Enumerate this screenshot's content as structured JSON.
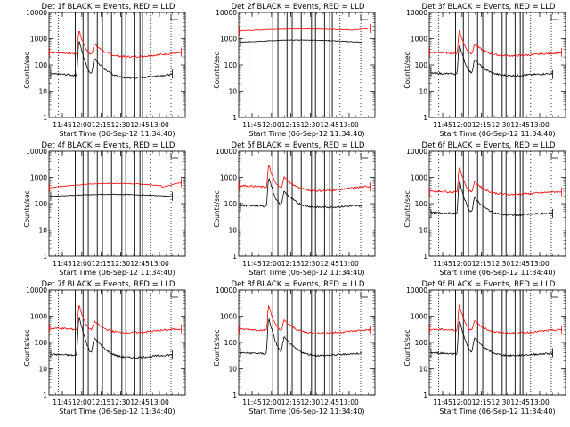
{
  "chart_data": [
    {
      "type": "line",
      "title": "Det 1f BLACK = Events, RED = LLD",
      "xlabel": "Start Time (06-Sep-12 11:34:40)",
      "ylabel": "Counts/sec",
      "yscale": "log",
      "ylim": [
        1,
        10000
      ],
      "yticks": [
        "1",
        "10",
        "100",
        "1000",
        "10000"
      ],
      "xlim": [
        "11:34:40",
        "13:20"
      ],
      "xticks": [
        "11:45",
        "12:00",
        "12:15",
        "12:30",
        "12:45",
        "13:00"
      ],
      "grid": false,
      "legend": "none",
      "profile": "flare",
      "series": [
        {
          "color": "#ff0000",
          "start": "11:35",
          "end": "13:17",
          "baseline": [
            200,
            300
          ],
          "peaks": [
            {
              "at": "11:58",
              "value": 2000
            },
            {
              "at": "12:10",
              "value": 580
            }
          ]
        },
        {
          "color": "#000000",
          "start": "11:36",
          "end": "13:10",
          "baseline": [
            30,
            45
          ],
          "peaks": [
            {
              "at": "11:58",
              "value": 800
            },
            {
              "at": "12:10",
              "value": 170
            }
          ]
        }
      ]
    },
    {
      "type": "line",
      "title": "Det 2f BLACK = Events, RED = LLD",
      "xlabel": "Start Time (06-Sep-12 11:34:40)",
      "ylabel": "Counts/sec",
      "yscale": "log",
      "ylim": [
        1,
        10000
      ],
      "yticks": [
        "1",
        "10",
        "100",
        "1000",
        "10000"
      ],
      "xlim": [
        "11:34:40",
        "13:20"
      ],
      "xticks": [
        "11:45",
        "12:00",
        "12:15",
        "12:30",
        "12:45",
        "13:00"
      ],
      "grid": false,
      "legend": "none",
      "profile": "flat",
      "series": [
        {
          "color": "#ff0000",
          "start": "11:35",
          "end": "13:17",
          "baseline": [
            2000,
            2400
          ]
        },
        {
          "color": "#000000",
          "start": "11:36",
          "end": "13:10",
          "baseline": [
            720,
            900
          ]
        }
      ]
    },
    {
      "type": "line",
      "title": "Det 3f BLACK = Events, RED = LLD",
      "xlabel": "Start Time (06-Sep-12 11:34:40)",
      "ylabel": "Counts/sec",
      "yscale": "log",
      "ylim": [
        1,
        10000
      ],
      "yticks": [
        "1",
        "10",
        "100",
        "1000",
        "10000"
      ],
      "xlim": [
        "11:34:40",
        "13:20"
      ],
      "xticks": [
        "11:45",
        "12:00",
        "12:15",
        "12:30",
        "12:45",
        "13:00"
      ],
      "grid": false,
      "legend": "none",
      "profile": "flare",
      "series": [
        {
          "color": "#ff0000",
          "start": "11:35",
          "end": "13:17",
          "baseline": [
            220,
            300
          ],
          "peaks": [
            {
              "at": "11:58",
              "value": 2000
            },
            {
              "at": "12:10",
              "value": 580
            }
          ]
        },
        {
          "color": "#000000",
          "start": "11:36",
          "end": "13:10",
          "baseline": [
            38,
            48
          ],
          "peaks": [
            {
              "at": "11:58",
              "value": 600
            },
            {
              "at": "12:10",
              "value": 150
            }
          ]
        }
      ]
    },
    {
      "type": "line",
      "title": "Det 4f BLACK = Events, RED = LLD",
      "xlabel": "Start Time (06-Sep-12 11:34:40)",
      "ylabel": "Counts/sec",
      "yscale": "log",
      "ylim": [
        1,
        10000
      ],
      "yticks": [
        "1",
        "10",
        "100",
        "1000",
        "10000"
      ],
      "xlim": [
        "11:34:40",
        "13:20"
      ],
      "xticks": [
        "11:45",
        "12:00",
        "12:15",
        "12:30",
        "12:45",
        "13:00"
      ],
      "grid": false,
      "legend": "none",
      "profile": "flat",
      "series": [
        {
          "color": "#ff0000",
          "start": "11:35",
          "end": "13:17",
          "baseline": [
            400,
            620
          ]
        },
        {
          "color": "#000000",
          "start": "11:36",
          "end": "13:10",
          "baseline": [
            190,
            230
          ]
        }
      ]
    },
    {
      "type": "line",
      "title": "Det 5f BLACK = Events, RED = LLD",
      "xlabel": "Start Time (06-Sep-12 11:34:40)",
      "ylabel": "Counts/sec",
      "yscale": "log",
      "ylim": [
        1,
        10000
      ],
      "yticks": [
        "1",
        "10",
        "100",
        "1000",
        "10000"
      ],
      "xlim": [
        "11:34:40",
        "13:20"
      ],
      "xticks": [
        "11:45",
        "12:00",
        "12:15",
        "12:30",
        "12:45",
        "13:00"
      ],
      "grid": false,
      "legend": "none",
      "profile": "flare",
      "series": [
        {
          "color": "#ff0000",
          "start": "11:35",
          "end": "13:17",
          "baseline": [
            300,
            480
          ],
          "peaks": [
            {
              "at": "11:58",
              "value": 2800
            },
            {
              "at": "12:10",
              "value": 950
            }
          ]
        },
        {
          "color": "#000000",
          "start": "11:36",
          "end": "13:10",
          "baseline": [
            70,
            85
          ],
          "peaks": [
            {
              "at": "11:58",
              "value": 1000
            },
            {
              "at": "12:10",
              "value": 280
            }
          ]
        }
      ]
    },
    {
      "type": "line",
      "title": "Det 6f BLACK = Events, RED = LLD",
      "xlabel": "Start Time (06-Sep-12 11:34:40)",
      "ylabel": "Counts/sec",
      "yscale": "log",
      "ylim": [
        1,
        10000
      ],
      "yticks": [
        "1",
        "10",
        "100",
        "1000",
        "10000"
      ],
      "xlim": [
        "11:34:40",
        "13:20"
      ],
      "xticks": [
        "11:45",
        "12:00",
        "12:15",
        "12:30",
        "12:45",
        "13:00"
      ],
      "grid": false,
      "legend": "none",
      "profile": "flare",
      "series": [
        {
          "color": "#ff0000",
          "start": "11:35",
          "end": "13:17",
          "baseline": [
            220,
            300
          ],
          "peaks": [
            {
              "at": "11:58",
              "value": 2500
            },
            {
              "at": "12:10",
              "value": 650
            }
          ]
        },
        {
          "color": "#000000",
          "start": "11:36",
          "end": "13:10",
          "baseline": [
            35,
            45
          ],
          "peaks": [
            {
              "at": "11:58",
              "value": 700
            },
            {
              "at": "12:10",
              "value": 160
            }
          ]
        }
      ]
    },
    {
      "type": "line",
      "title": "Det 7f BLACK = Events, RED = LLD",
      "xlabel": "Start Time (06-Sep-12 11:34:40)",
      "ylabel": "Counts/sec",
      "yscale": "log",
      "ylim": [
        1,
        10000
      ],
      "yticks": [
        "1",
        "10",
        "100",
        "1000",
        "10000"
      ],
      "xlim": [
        "11:34:40",
        "13:20"
      ],
      "xticks": [
        "11:45",
        "12:00",
        "12:15",
        "12:30",
        "12:45",
        "13:00"
      ],
      "grid": false,
      "legend": "none",
      "profile": "flare",
      "series": [
        {
          "color": "#ff0000",
          "start": "11:35",
          "end": "13:17",
          "baseline": [
            230,
            350
          ],
          "peaks": [
            {
              "at": "11:58",
              "value": 2600
            },
            {
              "at": "12:10",
              "value": 580
            }
          ]
        },
        {
          "color": "#000000",
          "start": "11:36",
          "end": "13:10",
          "baseline": [
            25,
            35
          ],
          "peaks": [
            {
              "at": "11:58",
              "value": 900
            },
            {
              "at": "12:10",
              "value": 140
            }
          ]
        }
      ]
    },
    {
      "type": "line",
      "title": "Det 8f BLACK = Events, RED = LLD",
      "xlabel": "Start Time (06-Sep-12 11:34:40)",
      "ylabel": "Counts/sec",
      "yscale": "log",
      "ylim": [
        1,
        10000
      ],
      "yticks": [
        "1",
        "10",
        "100",
        "1000",
        "10000"
      ],
      "xlim": [
        "11:34:40",
        "13:20"
      ],
      "xticks": [
        "11:45",
        "12:00",
        "12:15",
        "12:30",
        "12:45",
        "13:00"
      ],
      "grid": false,
      "legend": "none",
      "profile": "flare",
      "series": [
        {
          "color": "#ff0000",
          "start": "11:35",
          "end": "13:17",
          "baseline": [
            220,
            320
          ],
          "peaks": [
            {
              "at": "11:58",
              "value": 2500
            },
            {
              "at": "12:10",
              "value": 650
            }
          ]
        },
        {
          "color": "#000000",
          "start": "11:36",
          "end": "13:10",
          "baseline": [
            30,
            40
          ],
          "peaks": [
            {
              "at": "11:58",
              "value": 800
            },
            {
              "at": "12:10",
              "value": 150
            }
          ]
        }
      ]
    },
    {
      "type": "line",
      "title": "Det 9f BLACK = Events, RED = LLD",
      "xlabel": "Start Time (06-Sep-12 11:34:40)",
      "ylabel": "Counts/sec",
      "yscale": "log",
      "ylim": [
        1,
        10000
      ],
      "yticks": [
        "1",
        "10",
        "100",
        "1000",
        "10000"
      ],
      "xlim": [
        "11:34:40",
        "13:20"
      ],
      "xticks": [
        "11:45",
        "12:00",
        "12:15",
        "12:30",
        "12:45",
        "13:00"
      ],
      "grid": false,
      "legend": "none",
      "profile": "flare",
      "series": [
        {
          "color": "#ff0000",
          "start": "11:35",
          "end": "13:17",
          "baseline": [
            220,
            320
          ],
          "peaks": [
            {
              "at": "11:58",
              "value": 2600
            },
            {
              "at": "12:10",
              "value": 620
            }
          ]
        },
        {
          "color": "#000000",
          "start": "11:36",
          "end": "13:10",
          "baseline": [
            30,
            40
          ],
          "peaks": [
            {
              "at": "11:58",
              "value": 700
            },
            {
              "at": "12:10",
              "value": 140
            }
          ]
        }
      ]
    }
  ],
  "markers": {
    "dotted": [
      "11:42",
      "12:53",
      "13:09"
    ],
    "solid": [
      "11:55",
      "12:01",
      "12:05",
      "12:12",
      "12:16",
      "12:23",
      "12:31",
      "12:34",
      "12:41",
      "12:45",
      "12:47"
    ],
    "bracket": "13:09"
  }
}
